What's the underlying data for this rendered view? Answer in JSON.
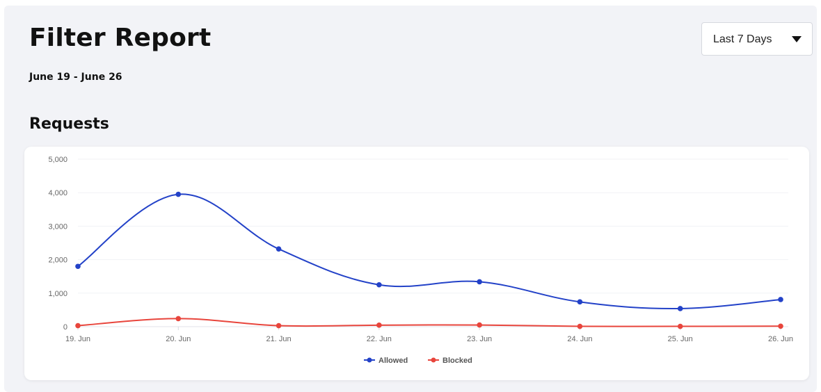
{
  "header": {
    "title": "Filter Report",
    "date_range": "June 19 - June 26",
    "range_select": {
      "selected": "Last 7 Days"
    }
  },
  "section": {
    "title": "Requests"
  },
  "chart_data": {
    "type": "line",
    "title": "",
    "xlabel": "",
    "ylabel": "",
    "categories": [
      "19. Jun",
      "20. Jun",
      "21. Jun",
      "22. Jun",
      "23. Jun",
      "24. Jun",
      "25. Jun",
      "26. Jun"
    ],
    "series": [
      {
        "name": "Allowed",
        "color": "#2342c8",
        "values": [
          1800,
          3950,
          2320,
          1250,
          1340,
          740,
          540,
          810
        ]
      },
      {
        "name": "Blocked",
        "color": "#e8453c",
        "values": [
          30,
          240,
          30,
          45,
          50,
          10,
          10,
          15
        ]
      }
    ],
    "ylim": [
      0,
      5000
    ],
    "yticks": [
      0,
      1000,
      2000,
      3000,
      4000,
      5000
    ],
    "ytick_labels": [
      "0",
      "1,000",
      "2,000",
      "3,000",
      "4,000",
      "5,000"
    ],
    "grid": true,
    "smooth": true,
    "legend": "bottom-center"
  }
}
